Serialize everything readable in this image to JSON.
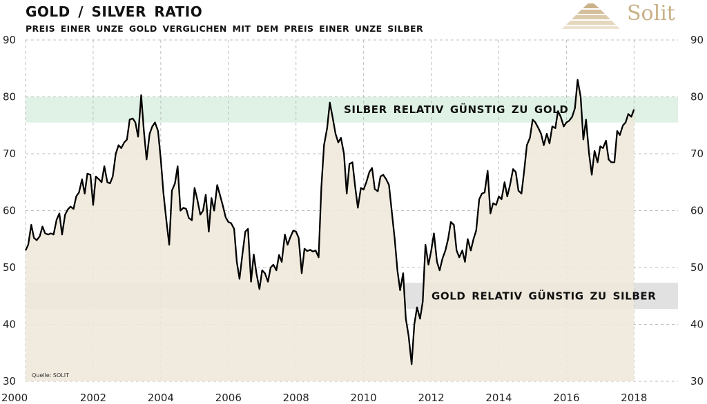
{
  "header": {
    "title": "GOLD / SILVER   RATIO",
    "subtitle": "PREIS EINER UNZE GOLD VERGLICHEN MIT DEM PREIS EINER UNZE SILBER"
  },
  "brand": {
    "name": "Solit",
    "logo_icon": "stepped-pyramid-logo"
  },
  "colors": {
    "fill": "#eee8da",
    "line": "#000000",
    "upper_band": "#d9f0e1",
    "lower_band": "#dcdcdc",
    "grid": "#bdbdbd",
    "brand": "#c9b188"
  },
  "chart_data": {
    "type": "area",
    "title": "GOLD / SILVER   RATIO",
    "subtitle": "PREIS EINER UNZE GOLD VERGLICHEN MIT DEM PREIS EINER UNZE SILBER",
    "xlabel": "",
    "ylabel": "",
    "xlim": [
      2000,
      2019.3
    ],
    "ylim": [
      30,
      90
    ],
    "grid": true,
    "x_ticks": [
      "2000",
      "2002",
      "2004",
      "2006",
      "2008",
      "2010",
      "2012",
      "2014",
      "2016",
      "2018"
    ],
    "y_ticks_left": [
      "30",
      "40",
      "50",
      "60",
      "70",
      "80",
      "90"
    ],
    "y_ticks_right": [
      "30",
      "40",
      "50",
      "60",
      "70",
      "80",
      "90"
    ],
    "bands": [
      {
        "label": "SILBER RELATIV GÜNSTIG ZU GOLD",
        "from": 75.5,
        "to": 80
      },
      {
        "label": "GOLD RELATIV GÜNSTIG ZU SILBER",
        "from": 42.7,
        "to": 47.3
      }
    ],
    "source": "Quelle: SOLIT",
    "series": [
      {
        "name": "Gold/Silver Ratio",
        "x": [
          2000.0,
          2000.08,
          2000.17,
          2000.25,
          2000.33,
          2000.42,
          2000.5,
          2000.58,
          2000.67,
          2000.75,
          2000.83,
          2000.92,
          2001.0,
          2001.08,
          2001.17,
          2001.25,
          2001.33,
          2001.42,
          2001.5,
          2001.58,
          2001.67,
          2001.75,
          2001.83,
          2001.92,
          2002.0,
          2002.08,
          2002.17,
          2002.25,
          2002.33,
          2002.42,
          2002.5,
          2002.58,
          2002.67,
          2002.75,
          2002.83,
          2002.92,
          2003.0,
          2003.08,
          2003.17,
          2003.25,
          2003.33,
          2003.42,
          2003.5,
          2003.58,
          2003.67,
          2003.75,
          2003.83,
          2003.92,
          2004.0,
          2004.08,
          2004.17,
          2004.25,
          2004.33,
          2004.42,
          2004.5,
          2004.58,
          2004.67,
          2004.75,
          2004.83,
          2004.92,
          2005.0,
          2005.08,
          2005.17,
          2005.25,
          2005.33,
          2005.42,
          2005.5,
          2005.58,
          2005.67,
          2005.75,
          2005.83,
          2005.92,
          2006.0,
          2006.08,
          2006.17,
          2006.25,
          2006.33,
          2006.42,
          2006.5,
          2006.58,
          2006.67,
          2006.75,
          2006.83,
          2006.92,
          2007.0,
          2007.08,
          2007.17,
          2007.25,
          2007.33,
          2007.42,
          2007.5,
          2007.58,
          2007.67,
          2007.75,
          2007.83,
          2007.92,
          2008.0,
          2008.08,
          2008.17,
          2008.25,
          2008.33,
          2008.42,
          2008.5,
          2008.58,
          2008.67,
          2008.75,
          2008.83,
          2008.92,
          2009.0,
          2009.08,
          2009.17,
          2009.25,
          2009.33,
          2009.42,
          2009.5,
          2009.58,
          2009.67,
          2009.75,
          2009.83,
          2009.92,
          2010.0,
          2010.08,
          2010.17,
          2010.25,
          2010.33,
          2010.42,
          2010.5,
          2010.58,
          2010.67,
          2010.75,
          2010.83,
          2010.92,
          2011.0,
          2011.08,
          2011.17,
          2011.25,
          2011.33,
          2011.42,
          2011.5,
          2011.58,
          2011.67,
          2011.75,
          2011.83,
          2011.92,
          2012.0,
          2012.08,
          2012.17,
          2012.25,
          2012.33,
          2012.42,
          2012.5,
          2012.58,
          2012.67,
          2012.75,
          2012.83,
          2012.92,
          2013.0,
          2013.08,
          2013.17,
          2013.25,
          2013.33,
          2013.42,
          2013.5,
          2013.58,
          2013.67,
          2013.75,
          2013.83,
          2013.92,
          2014.0,
          2014.08,
          2014.17,
          2014.25,
          2014.33,
          2014.42,
          2014.5,
          2014.58,
          2014.67,
          2014.75,
          2014.83,
          2014.92,
          2015.0,
          2015.08,
          2015.17,
          2015.25,
          2015.33,
          2015.42,
          2015.5,
          2015.58,
          2015.67,
          2015.75,
          2015.83,
          2015.92,
          2016.0,
          2016.08,
          2016.17,
          2016.25,
          2016.33,
          2016.42,
          2016.5,
          2016.58,
          2016.67,
          2016.75,
          2016.83,
          2016.92,
          2017.0,
          2017.08,
          2017.17,
          2017.25,
          2017.33,
          2017.42,
          2017.5,
          2017.58,
          2017.67,
          2017.75,
          2017.83,
          2017.92,
          2018.0
        ],
        "values": [
          53.0,
          54.0,
          57.5,
          55.2,
          54.8,
          55.5,
          57.2,
          56.0,
          55.8,
          56.0,
          55.8,
          58.4,
          59.5,
          55.8,
          59.3,
          60.2,
          60.7,
          60.3,
          62.5,
          63.2,
          65.5,
          63.0,
          66.5,
          66.3,
          61.0,
          66.0,
          65.5,
          65.0,
          67.8,
          65.0,
          64.8,
          66.0,
          70.0,
          71.5,
          71.0,
          72.0,
          72.5,
          76.0,
          76.2,
          75.5,
          73.0,
          80.3,
          74.0,
          69.0,
          73.5,
          74.8,
          75.5,
          74.0,
          69.0,
          63.0,
          58.0,
          54.0,
          63.5,
          64.8,
          67.8,
          60.0,
          60.5,
          60.3,
          58.7,
          58.3,
          64.0,
          62.0,
          59.3,
          60.0,
          62.8,
          56.3,
          62.2,
          60.0,
          64.5,
          62.8,
          61.0,
          58.8,
          58.0,
          57.8,
          56.8,
          51.0,
          48.0,
          52.5,
          56.3,
          56.8,
          47.5,
          52.3,
          49.0,
          46.2,
          49.5,
          49.0,
          47.5,
          50.0,
          50.5,
          49.5,
          52.2,
          51.0,
          55.8,
          54.0,
          55.3,
          56.5,
          56.3,
          55.2,
          49.0,
          53.3,
          52.9,
          53.1,
          52.8,
          53.0,
          51.8,
          64.0,
          71.5,
          74.5,
          79.0,
          76.5,
          73.5,
          72.0,
          72.8,
          70.0,
          63.0,
          68.2,
          68.5,
          64.2,
          60.5,
          64.0,
          63.7,
          65.0,
          66.8,
          67.5,
          63.8,
          63.4,
          66.0,
          66.3,
          65.5,
          64.5,
          60.0,
          55.0,
          49.5,
          46.0,
          49.0,
          41.0,
          38.0,
          33.0,
          40.0,
          43.0,
          41.0,
          44.0,
          54.0,
          50.5,
          53.0,
          56.0,
          51.0,
          49.5,
          51.5,
          53.0,
          55.0,
          58.0,
          57.5,
          53.0,
          51.8,
          53.0,
          51.0,
          55.0,
          53.0,
          55.0,
          56.5,
          62.0,
          63.0,
          63.2,
          67.0,
          59.5,
          61.3,
          61.0,
          62.5,
          62.0,
          65.0,
          62.5,
          64.5,
          67.3,
          66.8,
          63.5,
          63.0,
          67.0,
          71.5,
          72.8,
          76.0,
          75.5,
          74.5,
          73.5,
          71.5,
          73.5,
          71.8,
          74.8,
          74.5,
          77.5,
          76.5,
          74.8,
          75.5,
          75.8,
          76.5,
          78.0,
          83.0,
          80.0,
          72.5,
          76.0,
          70.0,
          66.3,
          70.5,
          68.5,
          71.3,
          71.0,
          72.3,
          69.0,
          68.5,
          68.5,
          74.0,
          73.3,
          75.0,
          75.5,
          77.0,
          76.5,
          77.8
        ]
      }
    ]
  }
}
